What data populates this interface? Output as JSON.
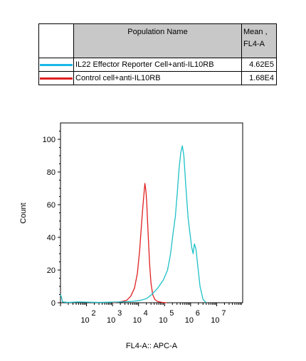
{
  "legend": {
    "header_name": "Population Name",
    "header_mean_line1": "Mean ,",
    "header_mean_line2": "FL4-A",
    "rows": [
      {
        "name": "IL22 Effector Reporter Cell+anti-IL10RB",
        "mean": "4.62E5",
        "color": "#19b7e8"
      },
      {
        "name": "Control cell+anti-IL10RB",
        "mean": "1.68E4",
        "color": "#e02020"
      }
    ]
  },
  "chart_data": {
    "type": "line",
    "xlabel": "FL4-A:: APC-A",
    "ylabel": "Count",
    "x_scale": "log",
    "xlim": [
      10,
      100000000
    ],
    "ylim": [
      0,
      110
    ],
    "y_ticks": [
      0,
      20,
      40,
      60,
      80,
      100
    ],
    "x_ticks": [
      {
        "base": "10",
        "exp": "2",
        "value": 100
      },
      {
        "base": "10",
        "exp": "3",
        "value": 1000
      },
      {
        "base": "10",
        "exp": "4",
        "value": 10000
      },
      {
        "base": "10",
        "exp": "5",
        "value": 100000
      },
      {
        "base": "10",
        "exp": "6",
        "value": 1000000
      },
      {
        "base": "10",
        "exp": "7",
        "value": 10000000
      }
    ],
    "series": [
      {
        "name": "Control cell+anti-IL10RB",
        "color": "#e02020",
        "x": [
          1000,
          2000,
          3500,
          5000,
          7000,
          9000,
          11000,
          13000,
          14500,
          16000,
          17500,
          19000,
          20500,
          22000,
          24000,
          26500,
          30000,
          35000,
          42000,
          55000,
          80000,
          120000
        ],
        "y": [
          0,
          0.5,
          1.5,
          4,
          9,
          18,
          32,
          48,
          58,
          66,
          73,
          69,
          62,
          51,
          38,
          24,
          12,
          5,
          2,
          0.7,
          0.2,
          0
        ]
      },
      {
        "name": "IL22 Effector Reporter Cell+anti-IL10RB",
        "color": "#1ec0c8",
        "x": [
          10,
          11,
          12,
          20,
          50,
          300,
          2000,
          6000,
          12000,
          20000,
          32000,
          55000,
          90000,
          130000,
          170000,
          210000,
          260000,
          310000,
          360000,
          420000,
          480000,
          550000,
          650000,
          800000,
          950000,
          1100000,
          1250000,
          1400000,
          1600000,
          1900000,
          2300000,
          3000000,
          4000000
        ],
        "y": [
          5,
          3,
          0.5,
          0.2,
          0.5,
          0.2,
          0.5,
          0.8,
          1.5,
          2.5,
          5,
          9,
          14,
          20,
          30,
          42,
          53,
          68,
          82,
          92,
          96,
          90,
          72,
          52,
          42,
          34,
          30,
          36,
          33,
          22,
          10,
          2,
          0
        ]
      }
    ]
  }
}
